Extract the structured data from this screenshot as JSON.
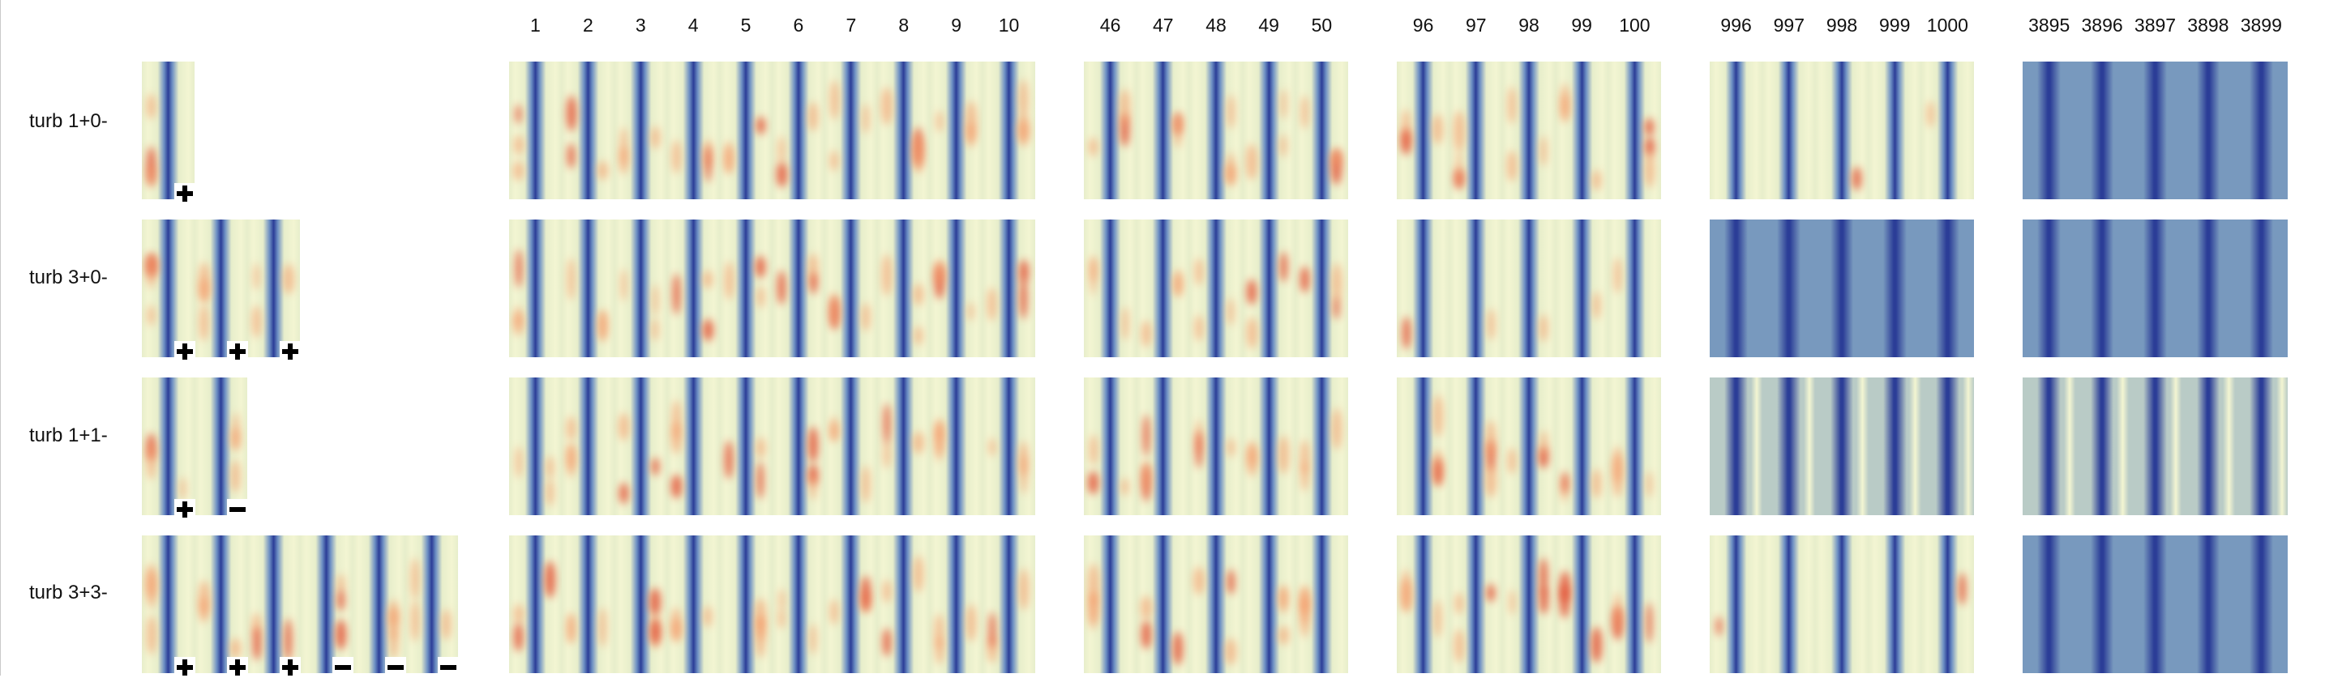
{
  "rows": [
    {
      "label": "turb 1+0-",
      "signs": [
        "+"
      ],
      "regimes": [
        "turb",
        "turb",
        "turb",
        "turb",
        "mixed",
        "lam"
      ]
    },
    {
      "label": "turb 3+0-",
      "signs": [
        "+",
        "+",
        "+"
      ],
      "regimes": [
        "turb",
        "turb",
        "turb",
        "mixed",
        "lam",
        "lam"
      ]
    },
    {
      "label": "turb 1+1-",
      "signs": [
        "+",
        "−"
      ],
      "regimes": [
        "turb",
        "turb",
        "turb",
        "turb",
        "lamLight",
        "lamLight"
      ]
    },
    {
      "label": "turb 3+3-",
      "signs": [
        "+",
        "+",
        "+",
        "−",
        "−",
        "−"
      ],
      "regimes": [
        "turb",
        "turb",
        "turb",
        "turb",
        "mixed",
        "lam"
      ]
    }
  ],
  "groups": [
    {
      "name": "t1-10",
      "labels": [
        "1",
        "2",
        "3",
        "4",
        "5",
        "6",
        "7",
        "8",
        "9",
        "10"
      ]
    },
    {
      "name": "t46-50",
      "labels": [
        "46",
        "47",
        "48",
        "49",
        "50"
      ]
    },
    {
      "name": "t96-100",
      "labels": [
        "96",
        "97",
        "98",
        "99",
        "100"
      ]
    },
    {
      "name": "t996-1000",
      "labels": [
        "996",
        "997",
        "998",
        "999",
        "1000"
      ]
    },
    {
      "name": "t3895-3899",
      "labels": [
        "3895",
        "3896",
        "3897",
        "3898",
        "3899"
      ]
    }
  ],
  "colors": {
    "dark_blue": "#2b3d97",
    "mid_blue": "#6f91c4",
    "light": "#e7eecb",
    "pale": "#f3f5d2",
    "orange": "#f59663",
    "red": "#e3563a",
    "laminar_bg": "#7899be",
    "laminar_light_bg": "#b9cbc6"
  }
}
